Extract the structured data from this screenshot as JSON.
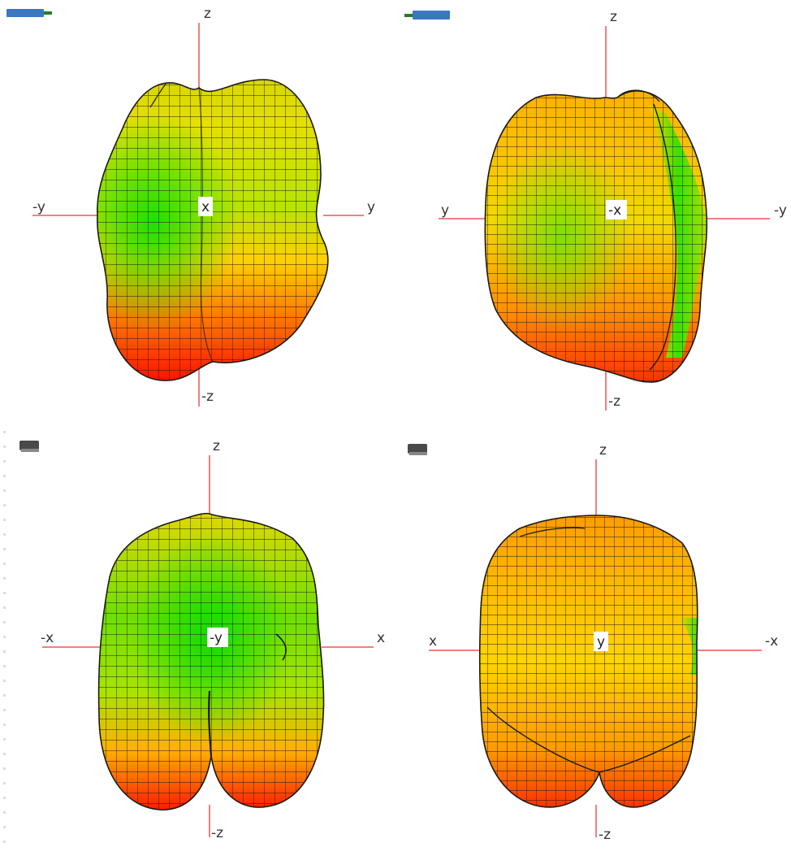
{
  "colors": {
    "axis": "#f08080",
    "mesh": "#1a1a1a",
    "high": "#ff1a00",
    "mid": "#ffd400",
    "low": "#1ee000",
    "background": "#ffffff"
  },
  "views": [
    {
      "axes": {
        "top": "z",
        "bottom": "-z",
        "left": "-y",
        "right": "y",
        "center": "x"
      },
      "marker_icon": "probe-icon-blue",
      "tone": "front",
      "highlight": "green-center"
    },
    {
      "axes": {
        "top": "z",
        "bottom": "-z",
        "left": "y",
        "right": "-y",
        "center": "-x"
      },
      "marker_icon": "probe-icon-blue-flipped",
      "tone": "back",
      "highlight": "orange"
    },
    {
      "axes": {
        "top": "z",
        "bottom": "-z",
        "left": "-x",
        "right": "x",
        "center": "-y"
      },
      "marker_icon": "probe-icon-gray",
      "tone": "side",
      "highlight": "green-strong"
    },
    {
      "axes": {
        "top": "z",
        "bottom": "-z",
        "left": "x",
        "right": "-x",
        "center": "y"
      },
      "marker_icon": "probe-icon-gray",
      "tone": "side-back",
      "highlight": "orange-strong"
    }
  ]
}
